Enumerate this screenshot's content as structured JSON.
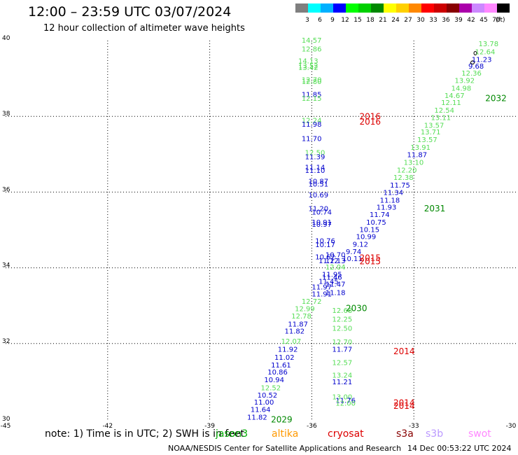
{
  "title": "12:00 – 23:59 UTC 03/07/2024",
  "subtitle": "12 hour collection of altimeter wave heights",
  "legend": {
    "unit": "(ft)",
    "bins": [
      {
        "label": "3",
        "color": "#7f7f7f"
      },
      {
        "label": "6",
        "color": "#00ffff"
      },
      {
        "label": "9",
        "color": "#00b0ff"
      },
      {
        "label": "12",
        "color": "#0000ff"
      },
      {
        "label": "15",
        "color": "#00ff00"
      },
      {
        "label": "18",
        "color": "#00d000"
      },
      {
        "label": "21",
        "color": "#008800"
      },
      {
        "label": "24",
        "color": "#ffff00"
      },
      {
        "label": "27",
        "color": "#ffd000"
      },
      {
        "label": "30",
        "color": "#ff8800"
      },
      {
        "label": "33",
        "color": "#ff0000"
      },
      {
        "label": "36",
        "color": "#cc0000"
      },
      {
        "label": "39",
        "color": "#880000"
      },
      {
        "label": "42",
        "color": "#aa00aa"
      },
      {
        "label": "45",
        "color": "#cc88ff"
      },
      {
        "label": "70",
        "color": "#ff88ff"
      },
      {
        "label": "",
        "color": "#000000"
      }
    ]
  },
  "axes": {
    "lon_ticks": [
      -45,
      -42,
      -39,
      -36,
      -33,
      -30
    ],
    "lat_ticks": [
      30,
      32,
      34,
      36,
      38,
      40
    ],
    "lon_range": [
      -45,
      -30
    ],
    "lat_range": [
      30,
      40
    ]
  },
  "note": "note:  1) Time is in UTC; 2) SWH is in feet",
  "satellites": [
    {
      "name": "jason3",
      "color": "#00aa00"
    },
    {
      "name": "altika",
      "color": "#ff9900"
    },
    {
      "name": "cryosat",
      "color": "#dd0000"
    },
    {
      "name": "s3a",
      "color": "#880000"
    },
    {
      "name": "s3b",
      "color": "#bb99ff"
    },
    {
      "name": "swot",
      "color": "#ff88ff"
    }
  ],
  "footer": "NOAA/NESDIS Center for Satellite Applications and Research",
  "footer_time": "14 Dec 00:53:22 UTC 2024",
  "wave_labels": [
    {
      "v": "14.57",
      "lon": -36.3,
      "lat": 39.94,
      "c": "#55dd55"
    },
    {
      "v": "12.86",
      "lon": -36.3,
      "lat": 39.71,
      "c": "#55dd55"
    },
    {
      "v": "14.13",
      "lon": -36.4,
      "lat": 39.4,
      "c": "#55dd55"
    },
    {
      "v": "13.52",
      "lon": -36.4,
      "lat": 39.27,
      "c": "#55dd55"
    },
    {
      "v": "13.42",
      "lon": -36.4,
      "lat": 39.22,
      "c": "#55dd55"
    },
    {
      "v": "12.70",
      "lon": -36.3,
      "lat": 38.9,
      "c": "#55dd55"
    },
    {
      "v": "12.80",
      "lon": -36.3,
      "lat": 38.85,
      "c": "#55dd55"
    },
    {
      "v": "11.85",
      "lon": -36.3,
      "lat": 38.51,
      "c": "#0000cc"
    },
    {
      "v": "12.15",
      "lon": -36.3,
      "lat": 38.41,
      "c": "#55dd55"
    },
    {
      "v": "12.24",
      "lon": -36.3,
      "lat": 37.83,
      "c": "#55dd55"
    },
    {
      "v": "11.98",
      "lon": -36.3,
      "lat": 37.73,
      "c": "#0000cc"
    },
    {
      "v": "11.70",
      "lon": -36.3,
      "lat": 37.35,
      "c": "#0000cc"
    },
    {
      "v": "12.50",
      "lon": -36.2,
      "lat": 36.98,
      "c": "#55dd55"
    },
    {
      "v": "11.39",
      "lon": -36.2,
      "lat": 36.87,
      "c": "#0000cc"
    },
    {
      "v": "11.14",
      "lon": -36.2,
      "lat": 36.59,
      "c": "#0000cc"
    },
    {
      "v": "11.10",
      "lon": -36.2,
      "lat": 36.51,
      "c": "#0000cc"
    },
    {
      "v": "10.87",
      "lon": -36.1,
      "lat": 36.22,
      "c": "#0000cc"
    },
    {
      "v": "10.51",
      "lon": -36.1,
      "lat": 36.15,
      "c": "#0000cc"
    },
    {
      "v": "10.69",
      "lon": -36.1,
      "lat": 35.86,
      "c": "#0000cc"
    },
    {
      "v": "11.20",
      "lon": -36.1,
      "lat": 35.5,
      "c": "#0000cc"
    },
    {
      "v": "10.74",
      "lon": -36.0,
      "lat": 35.41,
      "c": "#0000cc"
    },
    {
      "v": "10.91",
      "lon": -36.0,
      "lat": 35.14,
      "c": "#0000cc"
    },
    {
      "v": "10.97",
      "lon": -36.0,
      "lat": 35.08,
      "c": "#0000cc"
    },
    {
      "v": "10.76",
      "lon": -35.9,
      "lat": 34.65,
      "c": "#0000cc"
    },
    {
      "v": "10.17",
      "lon": -35.9,
      "lat": 34.55,
      "c": "#0000cc"
    },
    {
      "v": "10.70",
      "lon": -35.6,
      "lat": 34.28,
      "c": "#0000cc"
    },
    {
      "v": "10.62",
      "lon": -35.9,
      "lat": 34.22,
      "c": "#0000cc"
    },
    {
      "v": "11.12",
      "lon": -35.8,
      "lat": 34.12,
      "c": "#0000cc"
    },
    {
      "v": "12.13",
      "lon": -35.6,
      "lat": 34.12,
      "c": "#0000cc"
    },
    {
      "v": "12.04",
      "lon": -35.6,
      "lat": 33.96,
      "c": "#55dd55"
    },
    {
      "v": "11.95",
      "lon": -35.7,
      "lat": 33.76,
      "c": "#0000cc"
    },
    {
      "v": "11.46",
      "lon": -35.7,
      "lat": 33.69,
      "c": "#0000cc"
    },
    {
      "v": "11.45",
      "lon": -35.8,
      "lat": 33.58,
      "c": "#0000cc"
    },
    {
      "v": "11.47",
      "lon": -35.6,
      "lat": 33.5,
      "c": "#0000cc"
    },
    {
      "v": "11.97",
      "lon": -36.0,
      "lat": 33.43,
      "c": "#0000cc"
    },
    {
      "v": "11.91",
      "lon": -36.0,
      "lat": 33.24,
      "c": "#0000cc"
    },
    {
      "v": "11.18",
      "lon": -35.6,
      "lat": 33.28,
      "c": "#0000cc"
    },
    {
      "v": "12.72",
      "lon": -36.3,
      "lat": 33.05,
      "c": "#55dd55"
    },
    {
      "v": "12.99",
      "lon": -36.5,
      "lat": 32.86,
      "c": "#55dd55"
    },
    {
      "v": "12.68",
      "lon": -35.4,
      "lat": 32.81,
      "c": "#55dd55"
    },
    {
      "v": "12.78",
      "lon": -36.6,
      "lat": 32.66,
      "c": "#55dd55"
    },
    {
      "v": "12.25",
      "lon": -35.4,
      "lat": 32.58,
      "c": "#55dd55"
    },
    {
      "v": "11.87",
      "lon": -36.7,
      "lat": 32.45,
      "c": "#0000cc"
    },
    {
      "v": "11.82",
      "lon": -36.8,
      "lat": 32.26,
      "c": "#0000cc"
    },
    {
      "v": "12.50",
      "lon": -35.4,
      "lat": 32.34,
      "c": "#55dd55"
    },
    {
      "v": "12.07",
      "lon": -36.9,
      "lat": 32.0,
      "c": "#55dd55"
    },
    {
      "v": "12.70",
      "lon": -35.4,
      "lat": 31.98,
      "c": "#55dd55"
    },
    {
      "v": "11.92",
      "lon": -37.0,
      "lat": 31.78,
      "c": "#0000cc"
    },
    {
      "v": "11.77",
      "lon": -35.4,
      "lat": 31.78,
      "c": "#0000cc"
    },
    {
      "v": "11.02",
      "lon": -37.1,
      "lat": 31.57,
      "c": "#0000cc"
    },
    {
      "v": "12.57",
      "lon": -35.4,
      "lat": 31.43,
      "c": "#55dd55"
    },
    {
      "v": "11.61",
      "lon": -37.2,
      "lat": 31.37,
      "c": "#0000cc"
    },
    {
      "v": "10.86",
      "lon": -37.3,
      "lat": 31.18,
      "c": "#0000cc"
    },
    {
      "v": "13.24",
      "lon": -35.4,
      "lat": 31.1,
      "c": "#55dd55"
    },
    {
      "v": "10.94",
      "lon": -37.4,
      "lat": 30.98,
      "c": "#0000cc"
    },
    {
      "v": "11.21",
      "lon": -35.4,
      "lat": 30.92,
      "c": "#0000cc"
    },
    {
      "v": "12.52",
      "lon": -37.5,
      "lat": 30.77,
      "c": "#55dd55"
    },
    {
      "v": "10.52",
      "lon": -37.6,
      "lat": 30.57,
      "c": "#0000cc"
    },
    {
      "v": "13.00",
      "lon": -35.4,
      "lat": 30.53,
      "c": "#55dd55"
    },
    {
      "v": "11.76",
      "lon": -35.3,
      "lat": 30.43,
      "c": "#0000cc"
    },
    {
      "v": "11.00",
      "lon": -37.7,
      "lat": 30.39,
      "c": "#0000cc"
    },
    {
      "v": "12.00",
      "lon": -35.3,
      "lat": 30.36,
      "c": "#55dd55"
    },
    {
      "v": "11.64",
      "lon": -37.8,
      "lat": 30.19,
      "c": "#0000cc"
    },
    {
      "v": "11.82",
      "lon": -37.9,
      "lat": 29.99,
      "c": "#0000cc"
    },
    {
      "v": "13.78",
      "lon": -31.1,
      "lat": 39.85,
      "c": "#55dd55"
    },
    {
      "v": "12.64",
      "lon": -31.2,
      "lat": 39.64,
      "c": "#55dd55"
    },
    {
      "v": "11.23",
      "lon": -31.3,
      "lat": 39.44,
      "c": "#0000cc"
    },
    {
      "v": "9.68",
      "lon": -31.4,
      "lat": 39.26,
      "c": "#0000cc"
    },
    {
      "v": "12.36",
      "lon": -31.6,
      "lat": 39.08,
      "c": "#55dd55"
    },
    {
      "v": "13.92",
      "lon": -31.8,
      "lat": 38.88,
      "c": "#55dd55"
    },
    {
      "v": "14.98",
      "lon": -31.9,
      "lat": 38.68,
      "c": "#55dd55"
    },
    {
      "v": "14.67",
      "lon": -32.1,
      "lat": 38.48,
      "c": "#55dd55"
    },
    {
      "v": "12.11",
      "lon": -32.2,
      "lat": 38.3,
      "c": "#55dd55"
    },
    {
      "v": "12.54",
      "lon": -32.4,
      "lat": 38.1,
      "c": "#55dd55"
    },
    {
      "v": "13.11",
      "lon": -32.5,
      "lat": 37.9,
      "c": "#55dd55"
    },
    {
      "v": "13.57",
      "lon": -32.7,
      "lat": 37.7,
      "c": "#55dd55"
    },
    {
      "v": "13.71",
      "lon": -32.8,
      "lat": 37.52,
      "c": "#55dd55"
    },
    {
      "v": "13.57",
      "lon": -32.9,
      "lat": 37.32,
      "c": "#55dd55"
    },
    {
      "v": "13.91",
      "lon": -33.1,
      "lat": 37.12,
      "c": "#55dd55"
    },
    {
      "v": "11.87",
      "lon": -33.2,
      "lat": 36.92,
      "c": "#0000cc"
    },
    {
      "v": "13.10",
      "lon": -33.3,
      "lat": 36.72,
      "c": "#55dd55"
    },
    {
      "v": "12.20",
      "lon": -33.5,
      "lat": 36.52,
      "c": "#55dd55"
    },
    {
      "v": "12.38",
      "lon": -33.6,
      "lat": 36.32,
      "c": "#55dd55"
    },
    {
      "v": "11.75",
      "lon": -33.7,
      "lat": 36.12,
      "c": "#0000cc"
    },
    {
      "v": "11.34",
      "lon": -33.9,
      "lat": 35.92,
      "c": "#0000cc"
    },
    {
      "v": "11.18",
      "lon": -34.0,
      "lat": 35.72,
      "c": "#0000cc"
    },
    {
      "v": "11.93",
      "lon": -34.1,
      "lat": 35.54,
      "c": "#0000cc"
    },
    {
      "v": "11.74",
      "lon": -34.3,
      "lat": 35.34,
      "c": "#0000cc"
    },
    {
      "v": "10.75",
      "lon": -34.4,
      "lat": 35.14,
      "c": "#0000cc"
    },
    {
      "v": "10.15",
      "lon": -34.6,
      "lat": 34.94,
      "c": "#0000cc"
    },
    {
      "v": "10.99",
      "lon": -34.7,
      "lat": 34.76,
      "c": "#0000cc"
    },
    {
      "v": "9.12",
      "lon": -34.8,
      "lat": 34.56,
      "c": "#0000cc"
    },
    {
      "v": "9.74",
      "lon": -35.0,
      "lat": 34.36,
      "c": "#0000cc"
    },
    {
      "v": "10.11",
      "lon": -35.1,
      "lat": 34.18,
      "c": "#0000cc"
    }
  ],
  "time_labels": [
    {
      "t": "2016",
      "lon": -34.6,
      "lat": 37.92,
      "c": "#dd0000"
    },
    {
      "t": "2016",
      "lon": -34.6,
      "lat": 37.78,
      "c": "#dd0000"
    },
    {
      "t": "2032",
      "lon": -30.9,
      "lat": 38.4,
      "c": "#008800"
    },
    {
      "t": "2031",
      "lon": -32.7,
      "lat": 35.49,
      "c": "#008800"
    },
    {
      "t": "2015",
      "lon": -34.6,
      "lat": 34.19,
      "c": "#dd0000"
    },
    {
      "t": "2015",
      "lon": -34.6,
      "lat": 34.09,
      "c": "#dd0000"
    },
    {
      "t": "2030",
      "lon": -35.0,
      "lat": 32.86,
      "c": "#008800"
    },
    {
      "t": "2014",
      "lon": -33.6,
      "lat": 31.72,
      "c": "#dd0000"
    },
    {
      "t": "2014",
      "lon": -33.6,
      "lat": 30.36,
      "c": "#dd0000"
    },
    {
      "t": "2014",
      "lon": -33.6,
      "lat": 30.28,
      "c": "#dd0000"
    },
    {
      "t": "2029",
      "lon": -37.2,
      "lat": 29.92,
      "c": "#008800"
    }
  ]
}
